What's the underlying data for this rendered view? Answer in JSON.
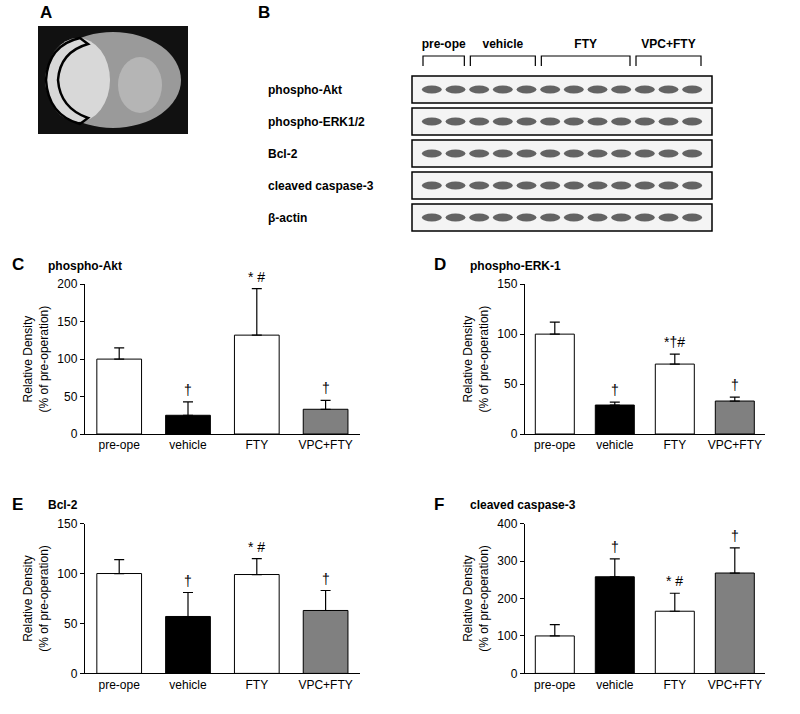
{
  "panel_a": {
    "label": "A"
  },
  "panel_b": {
    "label": "B",
    "groups": [
      {
        "label": "pre-ope",
        "lanes": 2
      },
      {
        "label": "vehicle",
        "lanes": 3
      },
      {
        "label": "FTY",
        "lanes": 4
      },
      {
        "label": "VPC+FTY",
        "lanes": 3
      }
    ],
    "rows": [
      "phospho-Akt",
      "phospho-ERK1/2",
      "Bcl-2",
      "cleaved caspase-3",
      "β-actin"
    ]
  },
  "chart_data": [
    {
      "type": "bar",
      "panel": "C",
      "title": "phospho-Akt",
      "y_label": [
        "Relative Density",
        "(% of pre-operation)"
      ],
      "categories": [
        "pre-ope",
        "vehicle",
        "FTY",
        "VPC+FTY"
      ],
      "values": [
        100,
        25,
        132,
        33
      ],
      "errors": [
        15,
        18,
        62,
        12
      ],
      "significance": [
        null,
        "†",
        "* #",
        "†"
      ],
      "colors": [
        "#ffffff",
        "#000000",
        "#ffffff",
        "#808080"
      ],
      "ylim": [
        0,
        200
      ],
      "yticks": [
        0,
        50,
        100,
        150,
        200
      ],
      "grid": false
    },
    {
      "type": "bar",
      "panel": "D",
      "title": "phospho-ERK-1",
      "y_label": [
        "Relative Density",
        "(% of pre-operation)"
      ],
      "categories": [
        "pre-ope",
        "vehicle",
        "FTY",
        "VPC+FTY"
      ],
      "values": [
        100,
        29,
        70,
        33
      ],
      "errors": [
        12,
        3,
        10,
        4
      ],
      "significance": [
        null,
        "†",
        "*†#",
        "†"
      ],
      "colors": [
        "#ffffff",
        "#000000",
        "#ffffff",
        "#808080"
      ],
      "ylim": [
        0,
        150
      ],
      "yticks": [
        0,
        50,
        100,
        150
      ],
      "grid": false
    },
    {
      "type": "bar",
      "panel": "E",
      "title": "Bcl-2",
      "y_label": [
        "Relative Density",
        "(% of pre-operation)"
      ],
      "categories": [
        "pre-ope",
        "vehicle",
        "FTY",
        "VPC+FTY"
      ],
      "values": [
        100,
        57,
        99,
        63
      ],
      "errors": [
        14,
        24,
        16,
        20
      ],
      "significance": [
        null,
        "†",
        "* #",
        "†"
      ],
      "colors": [
        "#ffffff",
        "#000000",
        "#ffffff",
        "#808080"
      ],
      "ylim": [
        0,
        150
      ],
      "yticks": [
        0,
        50,
        100,
        150
      ],
      "grid": false
    },
    {
      "type": "bar",
      "panel": "F",
      "title": "cleaved caspase-3",
      "y_label": [
        "Relative Density",
        "(% of pre-operation)"
      ],
      "categories": [
        "pre-ope",
        "vehicle",
        "FTY",
        "VPC+FTY"
      ],
      "values": [
        100,
        258,
        166,
        268
      ],
      "errors": [
        30,
        48,
        48,
        67
      ],
      "significance": [
        null,
        "†",
        "* #",
        "†"
      ],
      "colors": [
        "#ffffff",
        "#000000",
        "#ffffff",
        "#808080"
      ],
      "ylim": [
        0,
        400
      ],
      "yticks": [
        0,
        100,
        200,
        300,
        400
      ],
      "grid": false
    }
  ]
}
